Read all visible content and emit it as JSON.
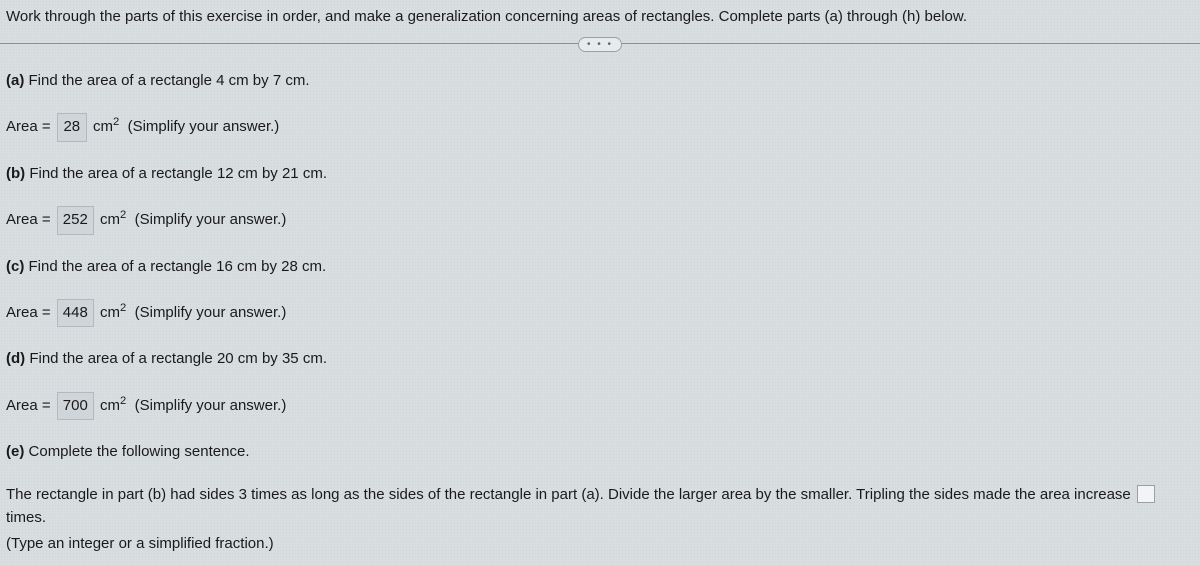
{
  "header": {
    "instructions": "Work through the parts of this exercise in order, and make a generalization concerning areas of rectangles. Complete parts (a) through (h) below."
  },
  "more_button": "• • •",
  "parts": {
    "a": {
      "label": "(a)",
      "prompt": "Find the area of a rectangle 4 cm by 7 cm.",
      "prefix": "Area =",
      "value": "28",
      "unit_base": "cm",
      "unit_exp": "2",
      "hint": "(Simplify your answer.)"
    },
    "b": {
      "label": "(b)",
      "prompt": "Find the area of a rectangle 12 cm by 21 cm.",
      "prefix": "Area =",
      "value": "252",
      "unit_base": "cm",
      "unit_exp": "2",
      "hint": "(Simplify your answer.)"
    },
    "c": {
      "label": "(c)",
      "prompt": "Find the area of a rectangle 16 cm by 28 cm.",
      "prefix": "Area =",
      "value": "448",
      "unit_base": "cm",
      "unit_exp": "2",
      "hint": "(Simplify your answer.)"
    },
    "d": {
      "label": "(d)",
      "prompt": "Find the area of a rectangle 20 cm by 35 cm.",
      "prefix": "Area =",
      "value": "700",
      "unit_base": "cm",
      "unit_exp": "2",
      "hint": "(Simplify your answer.)"
    },
    "e": {
      "label": "(e)",
      "prompt": "Complete the following sentence.",
      "sentence_before": "The rectangle in part (b) had sides 3 times as long as the sides of the rectangle in part (a). Divide the larger area by the smaller. Tripling the sides made the area increase",
      "sentence_after": "times.",
      "type_hint": "(Type an integer or a simplified fraction.)"
    }
  }
}
